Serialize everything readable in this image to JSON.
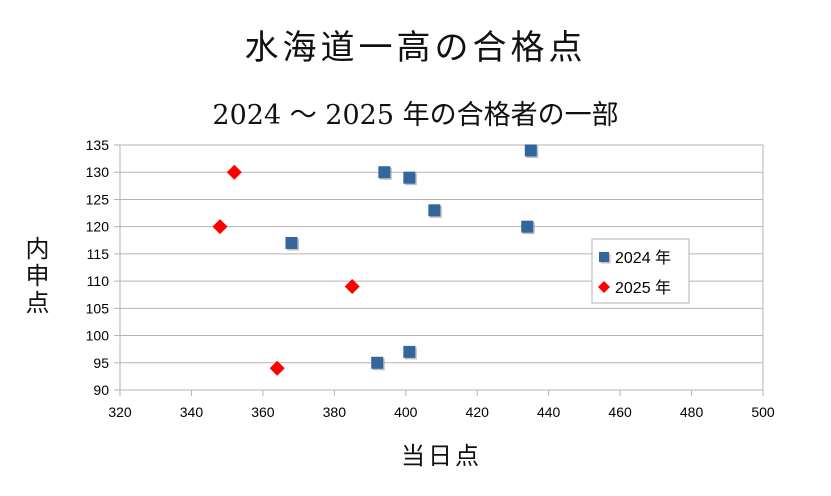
{
  "chart_data": {
    "type": "scatter",
    "title": "水海道一高の合格点",
    "subtitle": "2024 ～ 2025 年の合格者の一部",
    "xlabel": "当日点",
    "ylabel": "内申点",
    "xlim": [
      320,
      500
    ],
    "ylim": [
      90,
      135
    ],
    "x_ticks": [
      320,
      340,
      360,
      380,
      400,
      420,
      440,
      460,
      480,
      500
    ],
    "y_ticks": [
      90,
      95,
      100,
      105,
      110,
      115,
      120,
      125,
      130,
      135
    ],
    "grid": true,
    "legend_position": "right",
    "series": [
      {
        "name": "2024 年",
        "marker": "square",
        "color": "#34669e",
        "x": [
          435,
          394,
          401,
          408,
          434,
          368,
          401,
          392
        ],
        "y": [
          134,
          130,
          129,
          123,
          120,
          117,
          97,
          95
        ]
      },
      {
        "name": "2025 年",
        "marker": "diamond",
        "color": "#ff0000",
        "x": [
          352,
          348,
          385,
          364
        ],
        "y": [
          130,
          120,
          109,
          94
        ]
      }
    ]
  }
}
